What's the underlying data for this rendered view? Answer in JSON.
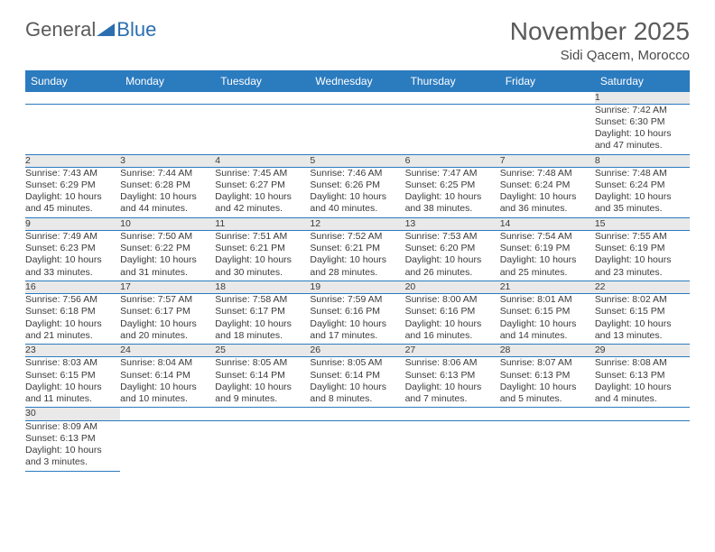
{
  "logo": {
    "part1": "General",
    "part2": "Blue"
  },
  "header": {
    "month": "November 2025",
    "location": "Sidi Qacem, Morocco"
  },
  "weekdays": [
    "Sunday",
    "Monday",
    "Tuesday",
    "Wednesday",
    "Thursday",
    "Friday",
    "Saturday"
  ],
  "colors": {
    "header_bar": "#2b7bbf",
    "daynum_bg": "#e9e9e9",
    "rule": "#2b7bbf",
    "text": "#3a3a3a",
    "logo_blue": "#2b6fb0"
  },
  "weeks": [
    [
      null,
      null,
      null,
      null,
      null,
      null,
      {
        "n": "1",
        "sr": "Sunrise: 7:42 AM",
        "ss": "Sunset: 6:30 PM",
        "d1": "Daylight: 10 hours",
        "d2": "and 47 minutes."
      }
    ],
    [
      {
        "n": "2",
        "sr": "Sunrise: 7:43 AM",
        "ss": "Sunset: 6:29 PM",
        "d1": "Daylight: 10 hours",
        "d2": "and 45 minutes."
      },
      {
        "n": "3",
        "sr": "Sunrise: 7:44 AM",
        "ss": "Sunset: 6:28 PM",
        "d1": "Daylight: 10 hours",
        "d2": "and 44 minutes."
      },
      {
        "n": "4",
        "sr": "Sunrise: 7:45 AM",
        "ss": "Sunset: 6:27 PM",
        "d1": "Daylight: 10 hours",
        "d2": "and 42 minutes."
      },
      {
        "n": "5",
        "sr": "Sunrise: 7:46 AM",
        "ss": "Sunset: 6:26 PM",
        "d1": "Daylight: 10 hours",
        "d2": "and 40 minutes."
      },
      {
        "n": "6",
        "sr": "Sunrise: 7:47 AM",
        "ss": "Sunset: 6:25 PM",
        "d1": "Daylight: 10 hours",
        "d2": "and 38 minutes."
      },
      {
        "n": "7",
        "sr": "Sunrise: 7:48 AM",
        "ss": "Sunset: 6:24 PM",
        "d1": "Daylight: 10 hours",
        "d2": "and 36 minutes."
      },
      {
        "n": "8",
        "sr": "Sunrise: 7:48 AM",
        "ss": "Sunset: 6:24 PM",
        "d1": "Daylight: 10 hours",
        "d2": "and 35 minutes."
      }
    ],
    [
      {
        "n": "9",
        "sr": "Sunrise: 7:49 AM",
        "ss": "Sunset: 6:23 PM",
        "d1": "Daylight: 10 hours",
        "d2": "and 33 minutes."
      },
      {
        "n": "10",
        "sr": "Sunrise: 7:50 AM",
        "ss": "Sunset: 6:22 PM",
        "d1": "Daylight: 10 hours",
        "d2": "and 31 minutes."
      },
      {
        "n": "11",
        "sr": "Sunrise: 7:51 AM",
        "ss": "Sunset: 6:21 PM",
        "d1": "Daylight: 10 hours",
        "d2": "and 30 minutes."
      },
      {
        "n": "12",
        "sr": "Sunrise: 7:52 AM",
        "ss": "Sunset: 6:21 PM",
        "d1": "Daylight: 10 hours",
        "d2": "and 28 minutes."
      },
      {
        "n": "13",
        "sr": "Sunrise: 7:53 AM",
        "ss": "Sunset: 6:20 PM",
        "d1": "Daylight: 10 hours",
        "d2": "and 26 minutes."
      },
      {
        "n": "14",
        "sr": "Sunrise: 7:54 AM",
        "ss": "Sunset: 6:19 PM",
        "d1": "Daylight: 10 hours",
        "d2": "and 25 minutes."
      },
      {
        "n": "15",
        "sr": "Sunrise: 7:55 AM",
        "ss": "Sunset: 6:19 PM",
        "d1": "Daylight: 10 hours",
        "d2": "and 23 minutes."
      }
    ],
    [
      {
        "n": "16",
        "sr": "Sunrise: 7:56 AM",
        "ss": "Sunset: 6:18 PM",
        "d1": "Daylight: 10 hours",
        "d2": "and 21 minutes."
      },
      {
        "n": "17",
        "sr": "Sunrise: 7:57 AM",
        "ss": "Sunset: 6:17 PM",
        "d1": "Daylight: 10 hours",
        "d2": "and 20 minutes."
      },
      {
        "n": "18",
        "sr": "Sunrise: 7:58 AM",
        "ss": "Sunset: 6:17 PM",
        "d1": "Daylight: 10 hours",
        "d2": "and 18 minutes."
      },
      {
        "n": "19",
        "sr": "Sunrise: 7:59 AM",
        "ss": "Sunset: 6:16 PM",
        "d1": "Daylight: 10 hours",
        "d2": "and 17 minutes."
      },
      {
        "n": "20",
        "sr": "Sunrise: 8:00 AM",
        "ss": "Sunset: 6:16 PM",
        "d1": "Daylight: 10 hours",
        "d2": "and 16 minutes."
      },
      {
        "n": "21",
        "sr": "Sunrise: 8:01 AM",
        "ss": "Sunset: 6:15 PM",
        "d1": "Daylight: 10 hours",
        "d2": "and 14 minutes."
      },
      {
        "n": "22",
        "sr": "Sunrise: 8:02 AM",
        "ss": "Sunset: 6:15 PM",
        "d1": "Daylight: 10 hours",
        "d2": "and 13 minutes."
      }
    ],
    [
      {
        "n": "23",
        "sr": "Sunrise: 8:03 AM",
        "ss": "Sunset: 6:15 PM",
        "d1": "Daylight: 10 hours",
        "d2": "and 11 minutes."
      },
      {
        "n": "24",
        "sr": "Sunrise: 8:04 AM",
        "ss": "Sunset: 6:14 PM",
        "d1": "Daylight: 10 hours",
        "d2": "and 10 minutes."
      },
      {
        "n": "25",
        "sr": "Sunrise: 8:05 AM",
        "ss": "Sunset: 6:14 PM",
        "d1": "Daylight: 10 hours",
        "d2": "and 9 minutes."
      },
      {
        "n": "26",
        "sr": "Sunrise: 8:05 AM",
        "ss": "Sunset: 6:14 PM",
        "d1": "Daylight: 10 hours",
        "d2": "and 8 minutes."
      },
      {
        "n": "27",
        "sr": "Sunrise: 8:06 AM",
        "ss": "Sunset: 6:13 PM",
        "d1": "Daylight: 10 hours",
        "d2": "and 7 minutes."
      },
      {
        "n": "28",
        "sr": "Sunrise: 8:07 AM",
        "ss": "Sunset: 6:13 PM",
        "d1": "Daylight: 10 hours",
        "d2": "and 5 minutes."
      },
      {
        "n": "29",
        "sr": "Sunrise: 8:08 AM",
        "ss": "Sunset: 6:13 PM",
        "d1": "Daylight: 10 hours",
        "d2": "and 4 minutes."
      }
    ],
    [
      {
        "n": "30",
        "sr": "Sunrise: 8:09 AM",
        "ss": "Sunset: 6:13 PM",
        "d1": "Daylight: 10 hours",
        "d2": "and 3 minutes."
      },
      null,
      null,
      null,
      null,
      null,
      null
    ]
  ]
}
